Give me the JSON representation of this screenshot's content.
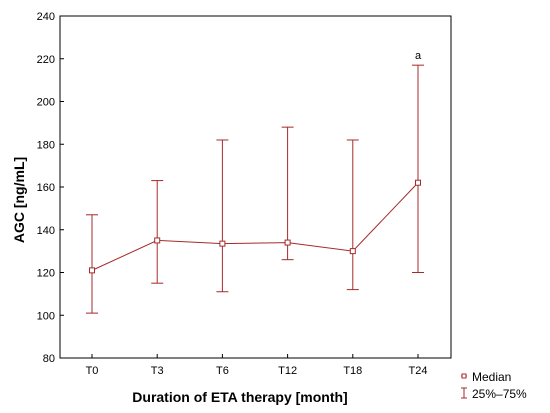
{
  "chart_data": {
    "type": "line",
    "title": "",
    "xlabel": "Duration of ETA therapy [month]",
    "ylabel": "AGC [ng/mL]",
    "categories": [
      "T0",
      "T3",
      "T6",
      "T12",
      "T18",
      "T24"
    ],
    "ylim": [
      80,
      240
    ],
    "yticks": [
      80,
      100,
      120,
      140,
      160,
      180,
      200,
      220,
      240
    ],
    "grid": false,
    "legend_position": "bottom-right",
    "series": [
      {
        "name": "Median",
        "values": [
          121,
          135,
          133.5,
          134,
          130,
          162
        ],
        "q25": [
          101,
          115,
          111,
          126,
          112,
          120
        ],
        "q75": [
          147,
          163,
          182,
          188,
          182,
          217
        ]
      }
    ],
    "range_label": "25%–75%",
    "annotations": [
      {
        "category": "T24",
        "text": "a"
      }
    ],
    "colors": {
      "series": "#a52a2a",
      "axis": "#000000"
    }
  }
}
